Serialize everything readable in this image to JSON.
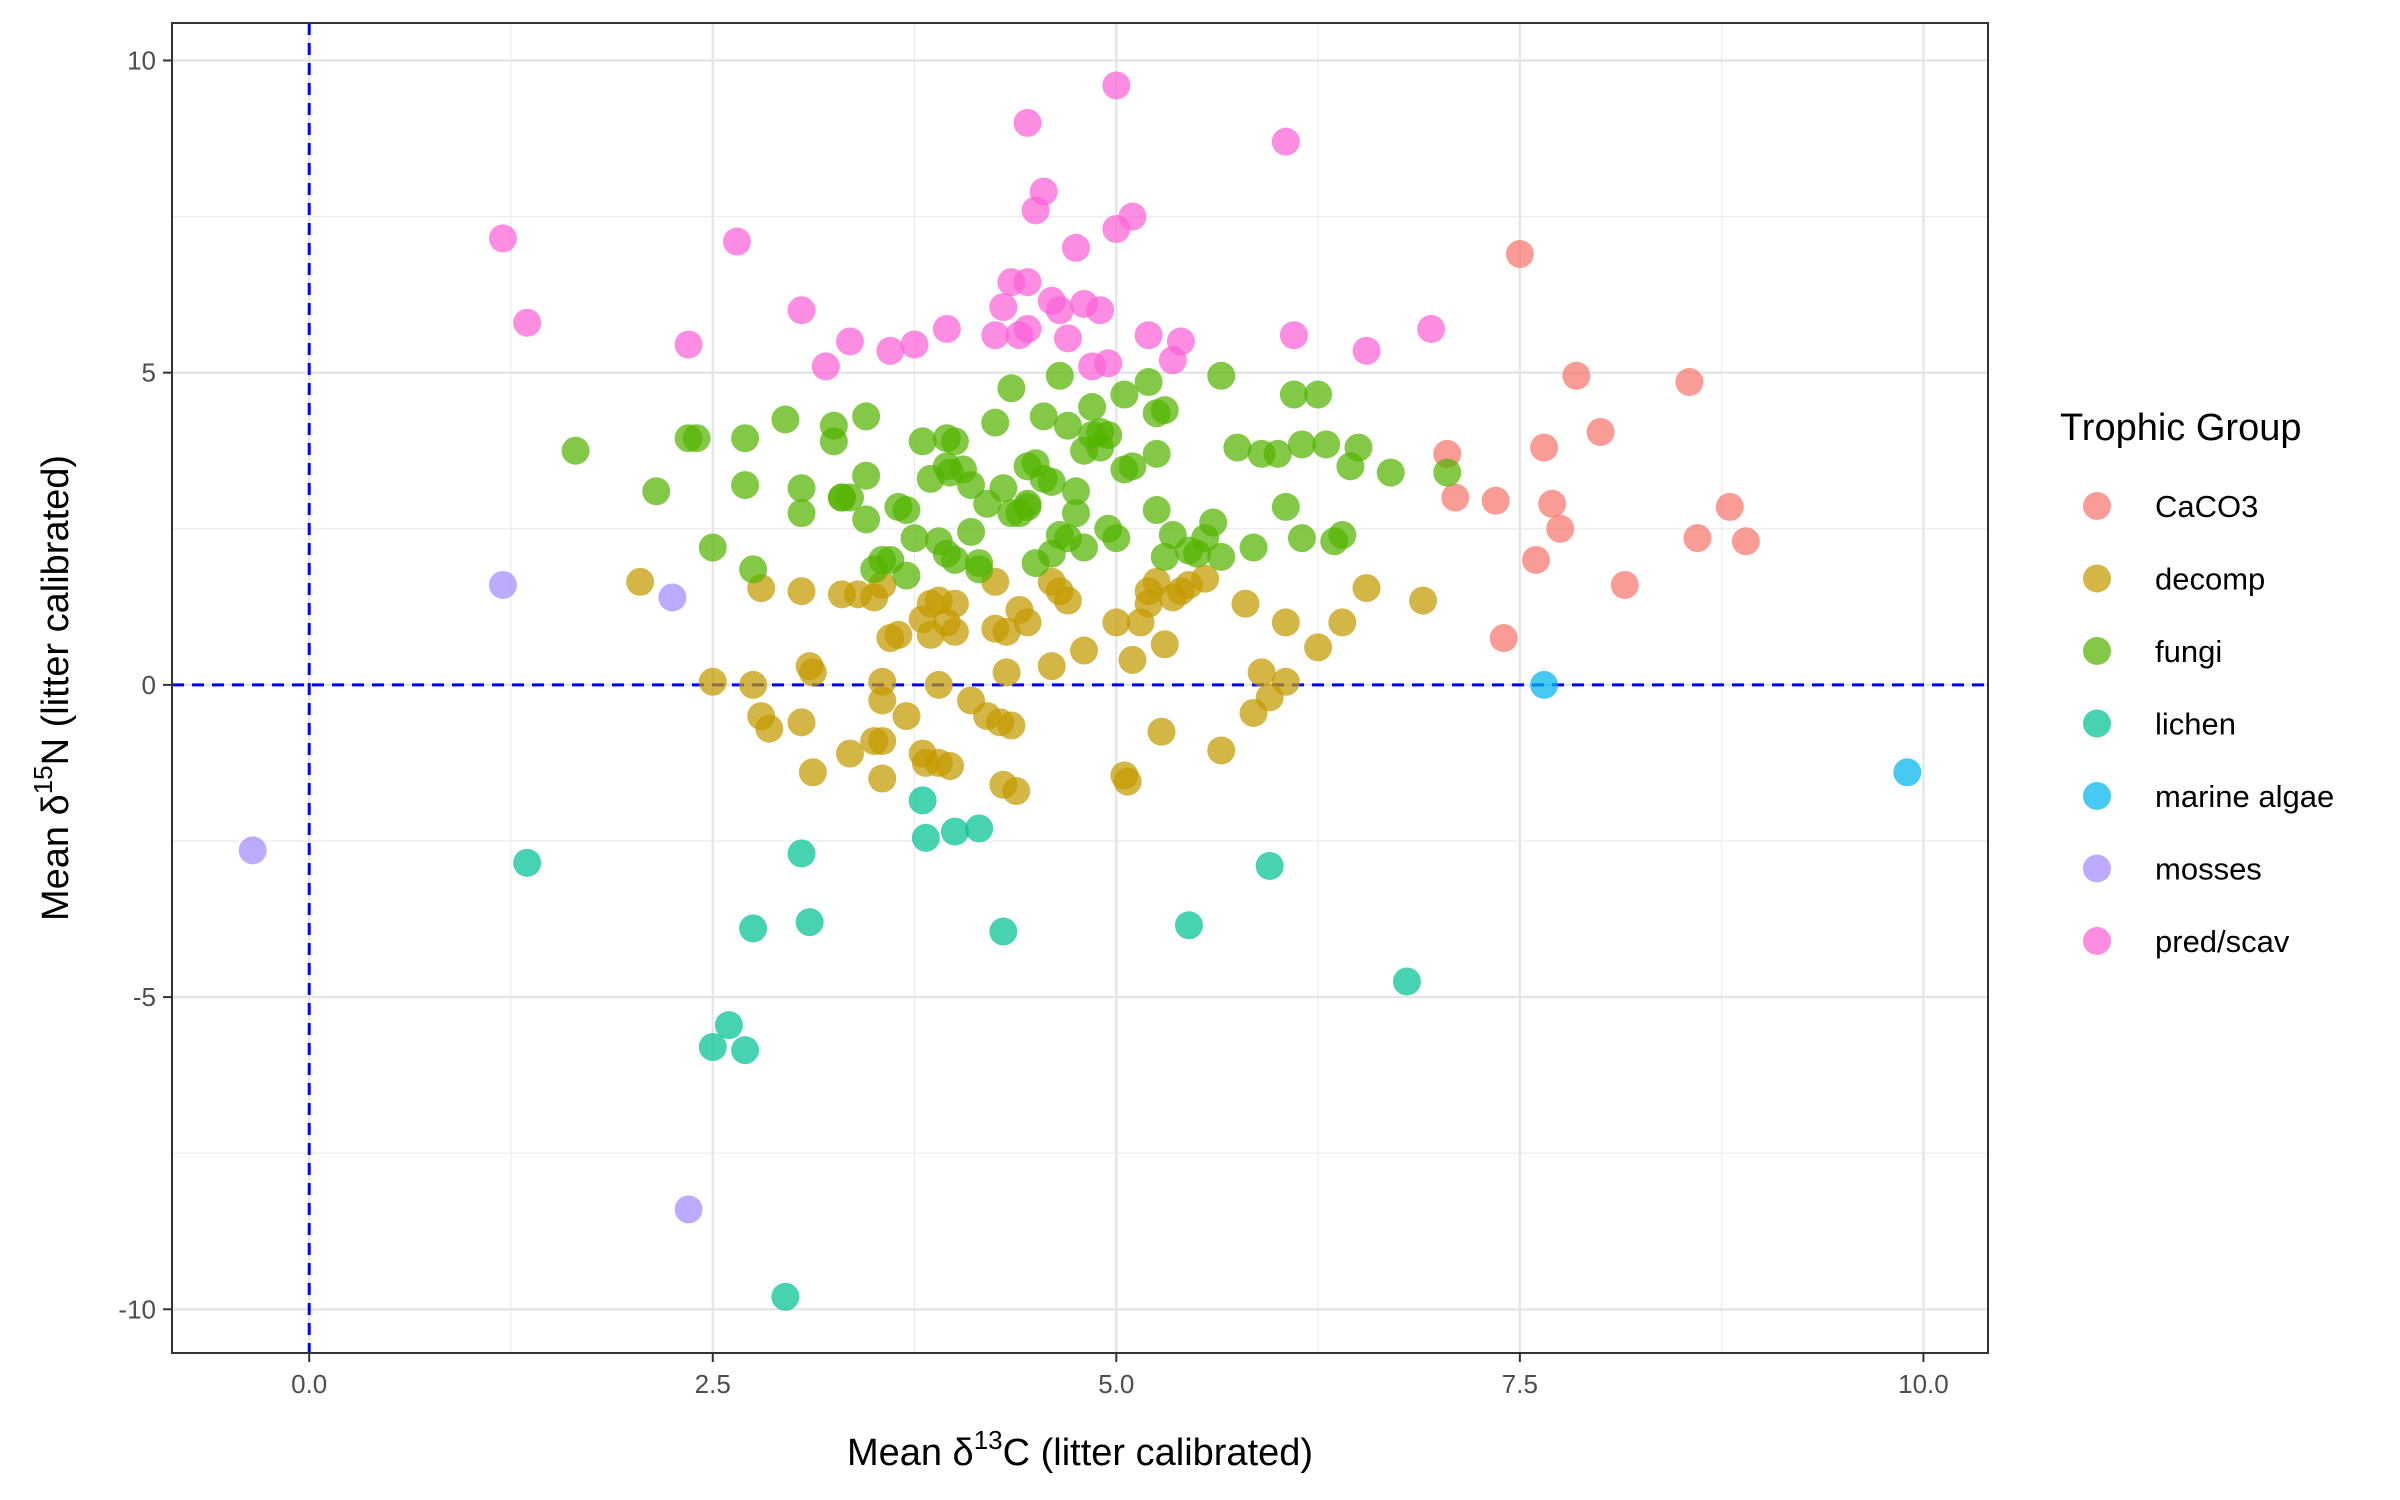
{
  "chart_data": {
    "type": "scatter",
    "xlabel": {
      "prefix": "Mean δ",
      "sup": "13",
      "suffix": "C (litter calibrated)"
    },
    "ylabel": {
      "prefix": "Mean δ",
      "sup": "15",
      "suffix": "N (litter calibrated)"
    },
    "xlim": [
      -0.85,
      10.4
    ],
    "ylim": [
      -10.7,
      10.6
    ],
    "x_ticks": [
      0.0,
      2.5,
      5.0,
      7.5,
      10.0
    ],
    "x_tick_labels": [
      "0.0",
      "2.5",
      "5.0",
      "7.5",
      "10.0"
    ],
    "y_ticks": [
      -10,
      -5,
      0,
      5,
      10
    ],
    "y_tick_labels": [
      "-10",
      "-5",
      "0",
      "5",
      "10"
    ],
    "grid": true,
    "reference_lines": [
      {
        "axis": "x",
        "value": 0,
        "style": "dashed",
        "color": "#0000ff"
      },
      {
        "axis": "y",
        "value": 0,
        "style": "dashed",
        "color": "#0000ff"
      }
    ],
    "legend": {
      "title": "Trophic Group",
      "position": "right"
    },
    "series": [
      {
        "name": "CaCO3",
        "color": "#F8766D",
        "points": [
          [
            7.5,
            6.9
          ],
          [
            7.05,
            3.7
          ],
          [
            7.1,
            3.0
          ],
          [
            7.35,
            2.95
          ],
          [
            7.6,
            2.0
          ],
          [
            7.65,
            3.8
          ],
          [
            7.7,
            2.9
          ],
          [
            7.75,
            2.5
          ],
          [
            7.85,
            4.95
          ],
          [
            8.0,
            4.05
          ],
          [
            8.15,
            1.6
          ],
          [
            8.55,
            4.85
          ],
          [
            8.6,
            2.35
          ],
          [
            8.8,
            2.85
          ],
          [
            8.9,
            2.3
          ],
          [
            7.4,
            0.75
          ]
        ]
      },
      {
        "name": "decomp",
        "color": "#C49A00",
        "points": [
          [
            2.05,
            1.65
          ],
          [
            2.5,
            0.05
          ],
          [
            2.75,
            0.0
          ],
          [
            2.8,
            -0.5
          ],
          [
            2.8,
            1.55
          ],
          [
            2.85,
            -0.7
          ],
          [
            3.05,
            1.5
          ],
          [
            3.05,
            -0.6
          ],
          [
            3.1,
            0.3
          ],
          [
            3.12,
            0.2
          ],
          [
            3.12,
            -1.4
          ],
          [
            3.3,
            1.45
          ],
          [
            3.35,
            -1.1
          ],
          [
            3.4,
            1.45
          ],
          [
            3.5,
            1.4
          ],
          [
            3.5,
            -0.9
          ],
          [
            3.55,
            1.6
          ],
          [
            3.55,
            -0.9
          ],
          [
            3.55,
            0.05
          ],
          [
            3.55,
            -0.25
          ],
          [
            3.55,
            -1.5
          ],
          [
            3.6,
            0.75
          ],
          [
            3.65,
            0.8
          ],
          [
            3.7,
            -0.5
          ],
          [
            3.8,
            -1.1
          ],
          [
            3.8,
            1.05
          ],
          [
            3.82,
            -1.25
          ],
          [
            3.85,
            1.3
          ],
          [
            3.85,
            0.8
          ],
          [
            3.9,
            1.35
          ],
          [
            3.9,
            0.0
          ],
          [
            3.9,
            -1.25
          ],
          [
            3.95,
            1.0
          ],
          [
            3.97,
            -1.3
          ],
          [
            4.0,
            0.85
          ],
          [
            4.0,
            1.3
          ],
          [
            4.1,
            -0.25
          ],
          [
            4.2,
            -0.5
          ],
          [
            4.25,
            1.65
          ],
          [
            4.25,
            0.9
          ],
          [
            4.28,
            -0.6
          ],
          [
            4.3,
            -1.6
          ],
          [
            4.32,
            0.85
          ],
          [
            4.35,
            -0.65
          ],
          [
            4.38,
            -1.7
          ],
          [
            4.32,
            0.2
          ],
          [
            4.4,
            1.2
          ],
          [
            4.45,
            1.0
          ],
          [
            4.6,
            0.3
          ],
          [
            4.6,
            1.65
          ],
          [
            4.65,
            1.5
          ],
          [
            4.7,
            1.35
          ],
          [
            4.8,
            0.55
          ],
          [
            5.0,
            1.0
          ],
          [
            5.05,
            -1.45
          ],
          [
            5.07,
            -1.55
          ],
          [
            5.1,
            0.4
          ],
          [
            5.15,
            1.0
          ],
          [
            5.2,
            1.3
          ],
          [
            5.2,
            1.5
          ],
          [
            5.25,
            1.65
          ],
          [
            5.28,
            -0.75
          ],
          [
            5.3,
            0.65
          ],
          [
            5.35,
            1.4
          ],
          [
            5.4,
            1.5
          ],
          [
            5.45,
            1.6
          ],
          [
            5.55,
            1.7
          ],
          [
            5.65,
            -1.05
          ],
          [
            5.8,
            1.3
          ],
          [
            5.85,
            -0.45
          ],
          [
            5.9,
            0.2
          ],
          [
            5.95,
            -0.2
          ],
          [
            6.05,
            0.05
          ],
          [
            6.05,
            1.0
          ],
          [
            6.25,
            0.6
          ],
          [
            6.4,
            1.0
          ],
          [
            6.55,
            1.55
          ],
          [
            6.9,
            1.35
          ]
        ]
      },
      {
        "name": "fungi",
        "color": "#53B400",
        "points": [
          [
            1.65,
            3.75
          ],
          [
            2.15,
            3.1
          ],
          [
            2.35,
            3.95
          ],
          [
            2.4,
            3.95
          ],
          [
            2.5,
            2.2
          ],
          [
            2.7,
            3.2
          ],
          [
            2.7,
            3.95
          ],
          [
            2.75,
            1.85
          ],
          [
            2.95,
            4.25
          ],
          [
            3.05,
            3.15
          ],
          [
            3.05,
            2.75
          ],
          [
            3.25,
            4.15
          ],
          [
            3.25,
            3.9
          ],
          [
            3.3,
            3.0
          ],
          [
            3.3,
            3.0
          ],
          [
            3.35,
            3.0
          ],
          [
            3.45,
            4.3
          ],
          [
            3.45,
            3.35
          ],
          [
            3.45,
            2.65
          ],
          [
            3.5,
            1.85
          ],
          [
            3.55,
            2.0
          ],
          [
            3.6,
            2.0
          ],
          [
            3.65,
            2.85
          ],
          [
            3.7,
            2.8
          ],
          [
            3.7,
            1.75
          ],
          [
            3.75,
            2.35
          ],
          [
            3.8,
            3.9
          ],
          [
            3.85,
            3.3
          ],
          [
            3.9,
            2.3
          ],
          [
            3.95,
            2.1
          ],
          [
            3.95,
            3.95
          ],
          [
            3.95,
            3.5
          ],
          [
            3.97,
            3.4
          ],
          [
            4.0,
            3.9
          ],
          [
            4.0,
            2.0
          ],
          [
            4.05,
            3.45
          ],
          [
            4.1,
            3.2
          ],
          [
            4.1,
            2.45
          ],
          [
            4.15,
            1.95
          ],
          [
            4.15,
            1.85
          ],
          [
            4.2,
            2.9
          ],
          [
            4.25,
            4.2
          ],
          [
            4.3,
            3.15
          ],
          [
            4.35,
            2.75
          ],
          [
            4.35,
            4.75
          ],
          [
            4.4,
            2.75
          ],
          [
            4.45,
            2.9
          ],
          [
            4.45,
            2.85
          ],
          [
            4.45,
            3.5
          ],
          [
            4.5,
            3.55
          ],
          [
            4.5,
            1.95
          ],
          [
            4.55,
            4.3
          ],
          [
            4.55,
            3.3
          ],
          [
            4.6,
            2.1
          ],
          [
            4.6,
            3.25
          ],
          [
            4.65,
            4.95
          ],
          [
            4.65,
            2.4
          ],
          [
            4.7,
            2.35
          ],
          [
            4.7,
            4.15
          ],
          [
            4.75,
            3.1
          ],
          [
            4.75,
            2.75
          ],
          [
            4.8,
            3.75
          ],
          [
            4.8,
            2.2
          ],
          [
            4.85,
            4.45
          ],
          [
            4.85,
            4.0
          ],
          [
            4.9,
            3.8
          ],
          [
            4.9,
            4.05
          ],
          [
            4.95,
            2.5
          ],
          [
            4.95,
            4.0
          ],
          [
            5.0,
            2.35
          ],
          [
            5.05,
            3.45
          ],
          [
            5.05,
            4.65
          ],
          [
            5.1,
            3.5
          ],
          [
            5.2,
            4.85
          ],
          [
            5.25,
            4.35
          ],
          [
            5.25,
            3.7
          ],
          [
            5.25,
            2.8
          ],
          [
            5.3,
            4.4
          ],
          [
            5.3,
            2.05
          ],
          [
            5.35,
            2.4
          ],
          [
            5.45,
            2.15
          ],
          [
            5.5,
            2.1
          ],
          [
            5.55,
            2.35
          ],
          [
            5.6,
            2.6
          ],
          [
            5.65,
            2.05
          ],
          [
            5.65,
            4.95
          ],
          [
            5.75,
            3.8
          ],
          [
            5.85,
            2.2
          ],
          [
            5.9,
            3.7
          ],
          [
            6.0,
            3.7
          ],
          [
            6.05,
            2.85
          ],
          [
            6.1,
            4.65
          ],
          [
            6.15,
            3.85
          ],
          [
            6.15,
            2.35
          ],
          [
            6.25,
            4.65
          ],
          [
            6.3,
            3.85
          ],
          [
            6.35,
            2.3
          ],
          [
            6.4,
            2.4
          ],
          [
            6.45,
            3.5
          ],
          [
            6.5,
            3.8
          ],
          [
            6.7,
            3.4
          ],
          [
            7.05,
            3.4
          ]
        ]
      },
      {
        "name": "lichen",
        "color": "#00C094",
        "points": [
          [
            1.35,
            -2.85
          ],
          [
            2.5,
            -5.8
          ],
          [
            2.6,
            -5.45
          ],
          [
            2.7,
            -5.85
          ],
          [
            2.75,
            -3.9
          ],
          [
            2.95,
            -9.8
          ],
          [
            3.05,
            -2.7
          ],
          [
            3.1,
            -3.8
          ],
          [
            3.8,
            -1.85
          ],
          [
            3.82,
            -2.45
          ],
          [
            4.0,
            -2.35
          ],
          [
            4.15,
            -2.3
          ],
          [
            4.3,
            -3.95
          ],
          [
            5.45,
            -3.85
          ],
          [
            5.95,
            -2.9
          ],
          [
            6.8,
            -4.75
          ]
        ]
      },
      {
        "name": "marine algae",
        "color": "#00B6EB",
        "points": [
          [
            7.65,
            0.0
          ],
          [
            9.9,
            -1.4
          ]
        ]
      },
      {
        "name": "mosses",
        "color": "#A58AFF",
        "points": [
          [
            -0.35,
            -2.65
          ],
          [
            1.2,
            1.6
          ],
          [
            2.25,
            1.4
          ],
          [
            2.35,
            -8.4
          ]
        ]
      },
      {
        "name": "pred/scav",
        "color": "#FB61D7",
        "points": [
          [
            1.2,
            7.15
          ],
          [
            1.35,
            5.8
          ],
          [
            2.35,
            5.45
          ],
          [
            2.65,
            7.1
          ],
          [
            3.05,
            6.0
          ],
          [
            3.2,
            5.1
          ],
          [
            3.35,
            5.5
          ],
          [
            3.6,
            5.35
          ],
          [
            3.75,
            5.45
          ],
          [
            3.95,
            5.7
          ],
          [
            4.25,
            5.6
          ],
          [
            4.3,
            6.05
          ],
          [
            4.35,
            6.45
          ],
          [
            4.4,
            5.6
          ],
          [
            4.45,
            9.0
          ],
          [
            4.45,
            6.45
          ],
          [
            4.45,
            5.7
          ],
          [
            4.5,
            7.6
          ],
          [
            4.55,
            7.9
          ],
          [
            4.6,
            6.15
          ],
          [
            4.65,
            6.0
          ],
          [
            4.7,
            5.55
          ],
          [
            4.75,
            7.0
          ],
          [
            4.8,
            6.1
          ],
          [
            4.85,
            5.1
          ],
          [
            4.9,
            6.0
          ],
          [
            4.95,
            5.15
          ],
          [
            5.0,
            9.6
          ],
          [
            5.0,
            7.3
          ],
          [
            5.1,
            7.5
          ],
          [
            5.2,
            5.6
          ],
          [
            5.35,
            5.2
          ],
          [
            5.4,
            5.5
          ],
          [
            6.05,
            8.7
          ],
          [
            6.1,
            5.6
          ],
          [
            6.55,
            5.35
          ],
          [
            6.95,
            5.7
          ]
        ]
      }
    ]
  }
}
